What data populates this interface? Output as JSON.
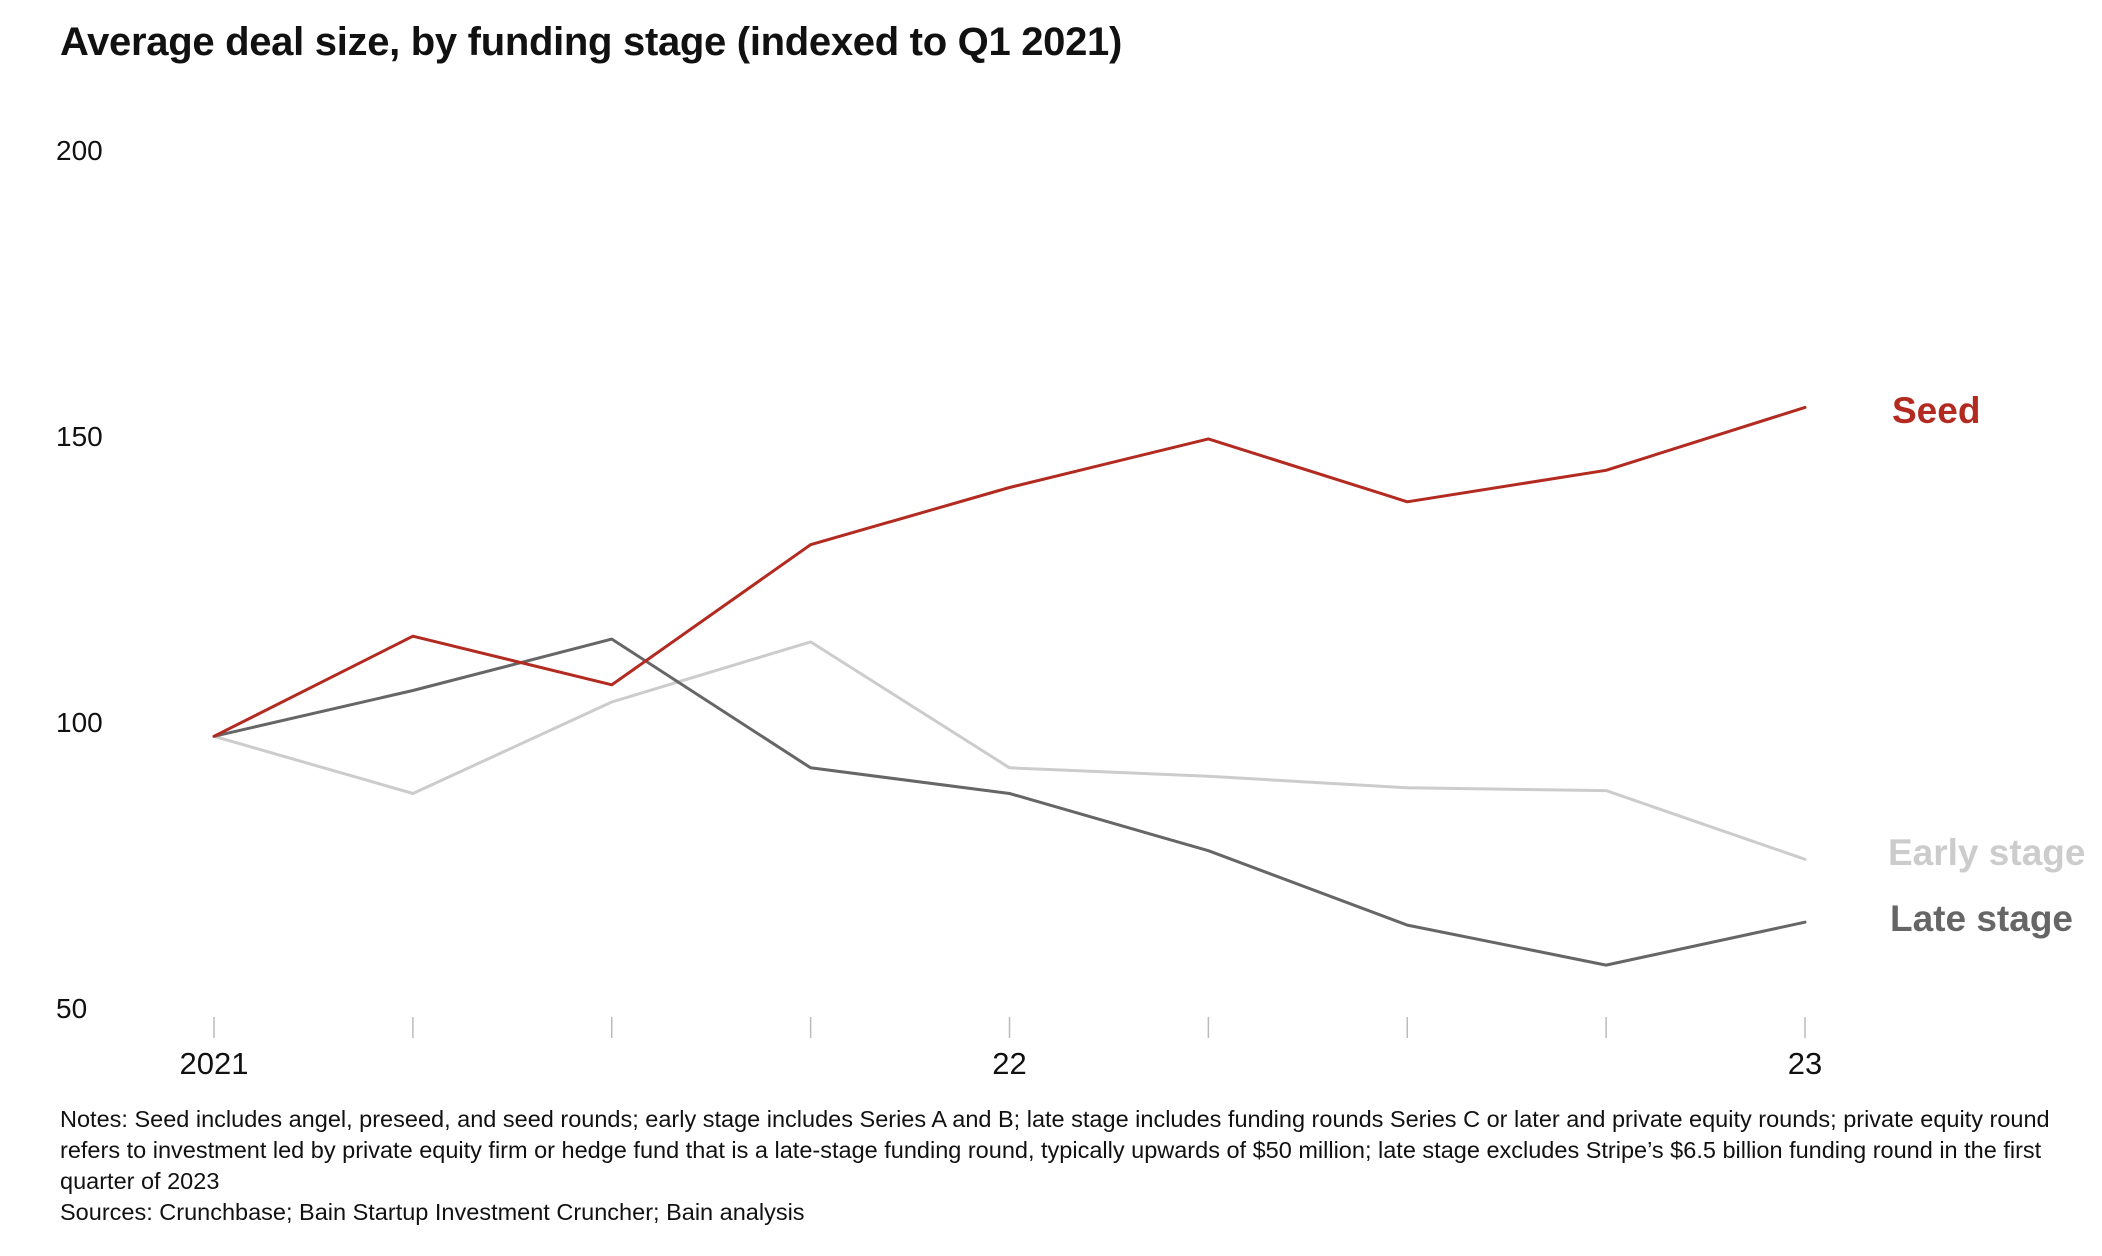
{
  "title": "Average deal size, by funding stage (indexed to Q1 2021)",
  "notes": "Notes: Seed includes angel, preseed, and seed rounds; early stage includes Series A and B; late stage includes funding rounds Series C or later and private equity rounds; private equity round refers to investment led by private equity firm or hedge fund that is a late-stage funding round, typically upwards of $50 million; late stage excludes Stripe’s $6.5 billion funding round in the first quarter of 2023",
  "sources": "Sources: Crunchbase; Bain Startup Investment Cruncher; Bain analysis",
  "chart_data": {
    "type": "line",
    "title": "Average deal size, by funding stage (indexed to Q1 2021)",
    "x": [
      "Q1 2021",
      "Q2 2021",
      "Q3 2021",
      "Q4 2021",
      "Q1 2022",
      "Q2 2022",
      "Q3 2022",
      "Q4 2022",
      "Q1 2023"
    ],
    "x_tick_labels": [
      "2021",
      "",
      "",
      "",
      "22",
      "",
      "",
      "",
      "23"
    ],
    "y_ticks": [
      50,
      100,
      150,
      200
    ],
    "ylim": [
      50,
      200
    ],
    "grid": false,
    "legend": "direct labels at line ends",
    "series": [
      {
        "name": "Seed",
        "color": "#b22a20",
        "values": [
          97.5,
          115,
          106.5,
          131,
          141,
          149.5,
          138.5,
          144,
          155
        ]
      },
      {
        "name": "Early stage",
        "color": "#cccccc",
        "values": [
          97.5,
          87.5,
          103.5,
          114,
          92,
          90.5,
          88.5,
          88,
          76
        ]
      },
      {
        "name": "Late stage",
        "color": "#666666",
        "values": [
          97.5,
          105.5,
          114.5,
          92,
          87.5,
          77.5,
          64.5,
          57.5,
          65
        ]
      }
    ]
  }
}
